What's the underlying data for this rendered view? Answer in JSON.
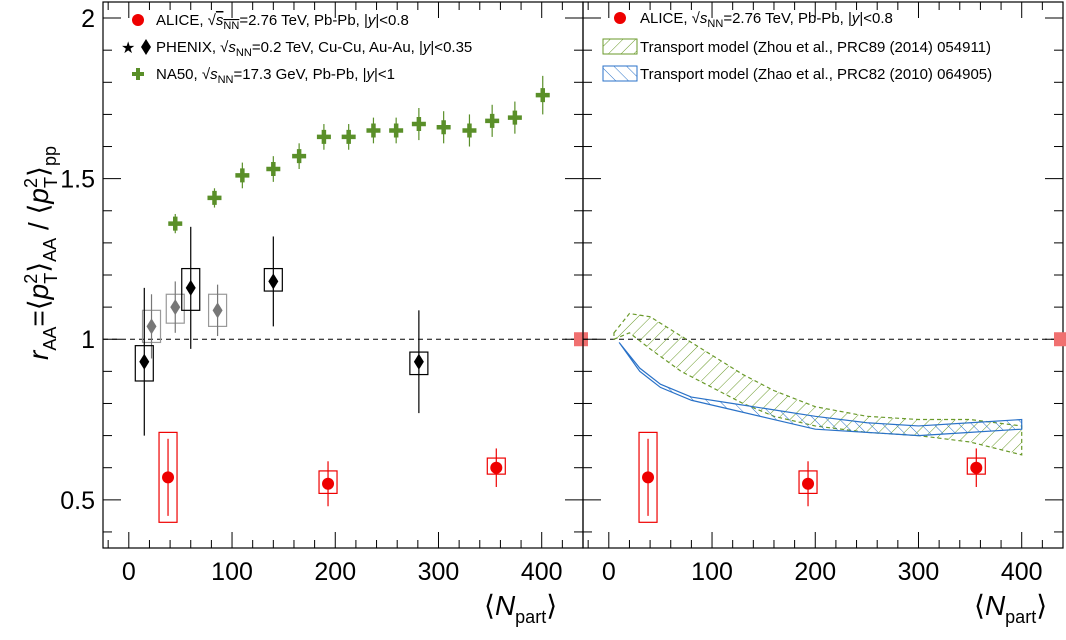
{
  "chart_data": [
    {
      "type": "scatter",
      "panel": "left",
      "ylabel": "r_AA = ⟨p_T^2⟩_AA / ⟨p_T^2⟩_pp",
      "xlabel": "⟨N_part⟩",
      "xlim": [
        -25,
        440
      ],
      "ylim": [
        0.35,
        2.05
      ],
      "x_ticks": [
        "0",
        "100",
        "200",
        "300",
        "400"
      ],
      "y_ticks": [
        "0.5",
        "1",
        "1.5",
        "2"
      ],
      "reference_line": 1,
      "series": [
        {
          "name": "ALICE, √s_NN=2.76 TeV, Pb-Pb, |y|<0.8",
          "marker": "circle",
          "color": "#ee0000",
          "points": [
            {
              "x": 38,
              "y": 0.57,
              "stat": 0.12,
              "sys_lo": 0.43,
              "sys_hi": 0.71
            },
            {
              "x": 193,
              "y": 0.55,
              "stat": 0.07,
              "sys_lo": 0.52,
              "sys_hi": 0.59
            },
            {
              "x": 356,
              "y": 0.6,
              "stat": 0.06,
              "sys_lo": 0.58,
              "sys_hi": 0.63
            }
          ]
        },
        {
          "name": "PHENIX, √s_NN=0.2 TeV, Cu-Cu, Au-Au, |y|<0.35",
          "marker": "diamond",
          "color": "#000000",
          "alt_marker": "star",
          "alt_color": "#777777",
          "points": [
            {
              "x": 15,
              "y": 0.93,
              "stat": 0.23,
              "sys_lo": 0.87,
              "sys_hi": 0.98
            },
            {
              "x": 60,
              "y": 1.16,
              "stat": 0.19,
              "sys_lo": 1.09,
              "sys_hi": 1.22
            },
            {
              "x": 140,
              "y": 1.18,
              "stat": 0.14,
              "sys_lo": 1.15,
              "sys_hi": 1.22
            },
            {
              "x": 281,
              "y": 0.93,
              "stat": 0.16,
              "sys_lo": 0.89,
              "sys_hi": 0.96
            }
          ],
          "points_cucu": [
            {
              "x": 22,
              "y": 1.04,
              "stat": 0.1,
              "sys_lo": 0.99,
              "sys_hi": 1.09
            },
            {
              "x": 45,
              "y": 1.1,
              "stat": 0.08,
              "sys_lo": 1.05,
              "sys_hi": 1.14
            },
            {
              "x": 86,
              "y": 1.09,
              "stat": 0.08,
              "sys_lo": 1.04,
              "sys_hi": 1.14
            }
          ]
        },
        {
          "name": "NA50, √s_NN=17.3 GeV, Pb-Pb, |y|<1",
          "marker": "cross",
          "color": "#5a8f29",
          "points": [
            {
              "x": 45,
              "y": 1.36,
              "stat": 0.03
            },
            {
              "x": 83,
              "y": 1.44,
              "stat": 0.03
            },
            {
              "x": 110,
              "y": 1.51,
              "stat": 0.04
            },
            {
              "x": 140,
              "y": 1.53,
              "stat": 0.04
            },
            {
              "x": 165,
              "y": 1.57,
              "stat": 0.04
            },
            {
              "x": 189,
              "y": 1.63,
              "stat": 0.04
            },
            {
              "x": 213,
              "y": 1.63,
              "stat": 0.04
            },
            {
              "x": 237,
              "y": 1.65,
              "stat": 0.04
            },
            {
              "x": 259,
              "y": 1.65,
              "stat": 0.04
            },
            {
              "x": 281,
              "y": 1.67,
              "stat": 0.05
            },
            {
              "x": 305,
              "y": 1.66,
              "stat": 0.05
            },
            {
              "x": 330,
              "y": 1.65,
              "stat": 0.05
            },
            {
              "x": 352,
              "y": 1.68,
              "stat": 0.05
            },
            {
              "x": 374,
              "y": 1.69,
              "stat": 0.05
            },
            {
              "x": 401,
              "y": 1.76,
              "stat": 0.06
            }
          ]
        }
      ],
      "global_uncertainty_box": {
        "y": 1.0,
        "color": "#f07070"
      }
    },
    {
      "type": "scatter",
      "panel": "right",
      "xlabel": "⟨N_part⟩",
      "xlim": [
        -25,
        440
      ],
      "ylim": [
        0.35,
        2.05
      ],
      "x_ticks": [
        "0",
        "100",
        "200",
        "300",
        "400"
      ],
      "reference_line": 1,
      "series": [
        {
          "name": "ALICE, √s_NN=2.76 TeV, Pb-Pb, |y|<0.8",
          "marker": "circle",
          "color": "#ee0000",
          "points": [
            {
              "x": 38,
              "y": 0.57,
              "stat": 0.12,
              "sys_lo": 0.43,
              "sys_hi": 0.71
            },
            {
              "x": 193,
              "y": 0.55,
              "stat": 0.07,
              "sys_lo": 0.52,
              "sys_hi": 0.59
            },
            {
              "x": 356,
              "y": 0.6,
              "stat": 0.06,
              "sys_lo": 0.58,
              "sys_hi": 0.63
            }
          ]
        },
        {
          "name": "Transport model (Zhou et al., PRC89 (2014) 054911)",
          "type": "band",
          "color": "#6a9a2a",
          "x": [
            5,
            20,
            40,
            70,
            100,
            130,
            160,
            200,
            250,
            300,
            350,
            400
          ],
          "upper": [
            1.02,
            1.08,
            1.07,
            1.01,
            0.95,
            0.89,
            0.84,
            0.79,
            0.76,
            0.75,
            0.75,
            0.73
          ],
          "lower": [
            1.0,
            1.02,
            0.97,
            0.9,
            0.85,
            0.8,
            0.76,
            0.73,
            0.71,
            0.7,
            0.68,
            0.64
          ]
        },
        {
          "name": "Transport model (Zhao et al., PRC82 (2010) 064905)",
          "type": "band",
          "color": "#2a72c8",
          "x": [
            10,
            30,
            50,
            80,
            120,
            160,
            200,
            250,
            300,
            350,
            400
          ],
          "upper": [
            0.99,
            0.91,
            0.86,
            0.82,
            0.8,
            0.78,
            0.76,
            0.74,
            0.73,
            0.74,
            0.75
          ],
          "lower": [
            0.99,
            0.9,
            0.85,
            0.81,
            0.78,
            0.75,
            0.72,
            0.71,
            0.7,
            0.71,
            0.72
          ]
        }
      ],
      "global_uncertainty_box": {
        "y": 1.0,
        "color": "#f07070"
      }
    }
  ]
}
